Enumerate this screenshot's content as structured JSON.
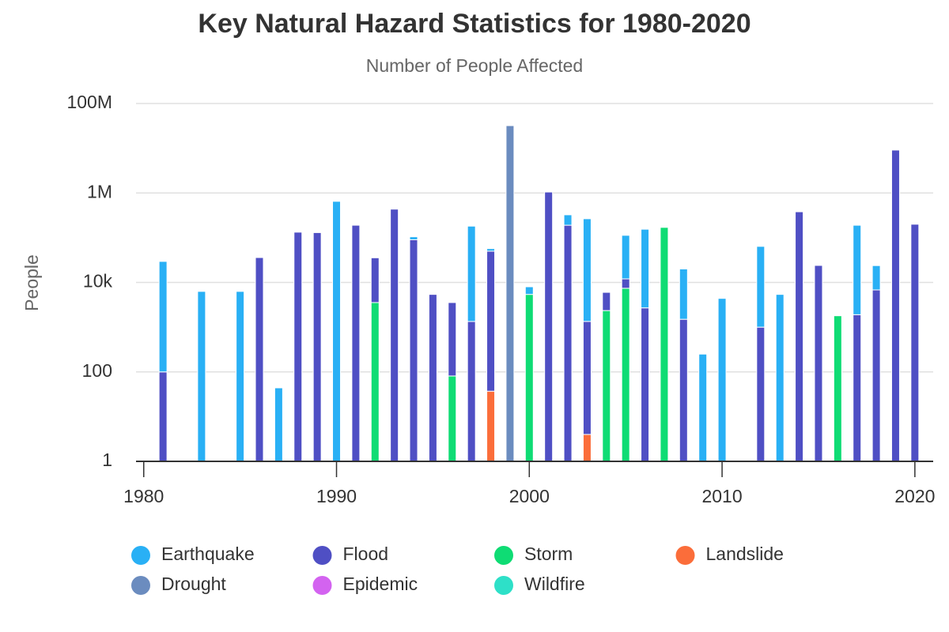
{
  "chart_data": {
    "type": "stacked_bar",
    "title": "Key Natural Hazard Statistics for 1980-2020",
    "subtitle": "Number of People Affected",
    "y_label": "People",
    "log_scale": true,
    "grid": true,
    "legend": "bottom",
    "x": [
      1981,
      1983,
      1985,
      1986,
      1987,
      1988,
      1989,
      1990,
      1991,
      1992,
      1993,
      1994,
      1995,
      1996,
      1997,
      1998,
      1999,
      2000,
      2001,
      2002,
      2003,
      2004,
      2005,
      2006,
      2007,
      2008,
      2009,
      2010,
      2012,
      2013,
      2014,
      2015,
      2016,
      2017,
      2018,
      2019,
      2020
    ],
    "xlim": [
      1979.6,
      2020.95
    ],
    "xticks": [
      1980,
      1990,
      2000,
      2010,
      2020
    ],
    "ylim": [
      1,
      100000000
    ],
    "yticks": [
      1,
      100,
      {
        "value": 10000,
        "label": "10k"
      },
      {
        "value": 1000000,
        "label": "1M"
      },
      {
        "value": 100000000,
        "label": "100M"
      }
    ],
    "series": [
      {
        "name": "Earthquake",
        "color": "#29b0f5",
        "values": [
          29400,
          6300,
          6300,
          null,
          44,
          null,
          null,
          650000,
          null,
          null,
          null,
          15000,
          null,
          null,
          180000,
          7000,
          null,
          2600,
          null,
          135000,
          264000,
          null,
          101000,
          152000,
          null,
          18500,
          250,
          4400,
          63000,
          5400,
          null,
          null,
          null,
          188000,
          17000,
          null,
          null
        ]
      },
      {
        "name": "Flood",
        "color": "#4f4fc4",
        "values": [
          100,
          null,
          null,
          36000,
          null,
          133000,
          130000,
          null,
          190000,
          32000,
          435000,
          90000,
          5400,
          3470,
          1340,
          50000,
          null,
          null,
          1050000,
          190000,
          1340,
          3650,
          4600,
          2700,
          null,
          1500,
          null,
          null,
          1000,
          null,
          380000,
          24000,
          null,
          1900,
          6800,
          9100000,
          200000
        ]
      },
      {
        "name": "Storm",
        "color": "#0fdc74",
        "values": [
          null,
          null,
          null,
          null,
          null,
          null,
          null,
          null,
          null,
          3550,
          null,
          null,
          null,
          81,
          null,
          null,
          null,
          5400,
          null,
          null,
          null,
          2350,
          7400,
          null,
          170000,
          null,
          null,
          null,
          null,
          null,
          null,
          null,
          1800,
          null,
          null,
          null,
          null
        ]
      },
      {
        "name": "Landslide",
        "color": "#fb6d3a",
        "values": [
          null,
          null,
          null,
          null,
          null,
          null,
          null,
          null,
          null,
          null,
          null,
          null,
          null,
          null,
          null,
          37,
          null,
          null,
          null,
          null,
          4,
          null,
          null,
          null,
          null,
          null,
          null,
          null,
          null,
          null,
          null,
          null,
          null,
          null,
          null,
          null,
          null
        ]
      },
      {
        "name": "Drought",
        "color": "#6b8cbf",
        "values": [
          null,
          null,
          null,
          null,
          null,
          null,
          null,
          null,
          null,
          null,
          null,
          null,
          null,
          null,
          null,
          null,
          32000000,
          null,
          null,
          null,
          null,
          null,
          null,
          null,
          null,
          null,
          null,
          null,
          null,
          null,
          null,
          null,
          null,
          null,
          null,
          null,
          null
        ]
      },
      {
        "name": "Epidemic",
        "color": "#d363f0",
        "values": [
          null,
          null,
          null,
          null,
          null,
          null,
          null,
          null,
          null,
          null,
          null,
          null,
          null,
          null,
          null,
          null,
          null,
          null,
          null,
          null,
          null,
          null,
          null,
          null,
          null,
          null,
          null,
          null,
          null,
          null,
          null,
          null,
          null,
          null,
          null,
          null,
          null
        ]
      },
      {
        "name": "Wildfire",
        "color": "#2ee0c8",
        "values": [
          null,
          null,
          null,
          null,
          null,
          null,
          null,
          null,
          null,
          null,
          null,
          null,
          null,
          null,
          null,
          null,
          null,
          null,
          null,
          null,
          null,
          null,
          null,
          null,
          null,
          null,
          null,
          null,
          null,
          null,
          null,
          null,
          null,
          null,
          null,
          null,
          null
        ]
      }
    ]
  }
}
